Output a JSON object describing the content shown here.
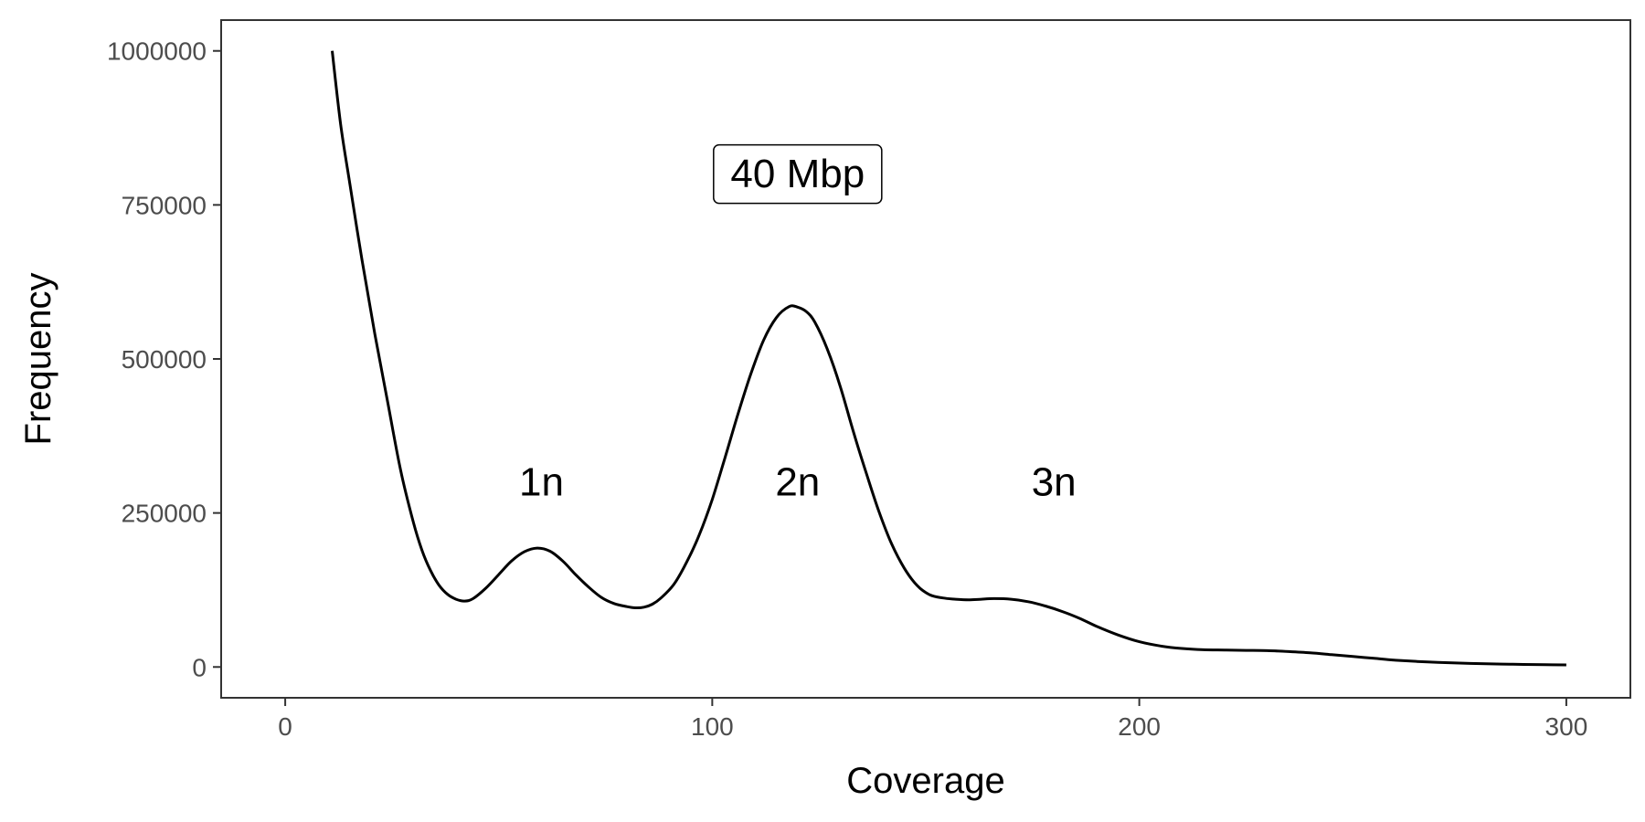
{
  "chart_data": {
    "type": "line",
    "xlabel": "Coverage",
    "ylabel": "Frequency",
    "xlim": [
      -15,
      315
    ],
    "ylim": [
      -50000,
      1050000
    ],
    "x_ticks": [
      0,
      100,
      200,
      300
    ],
    "x_tick_labels": [
      "0",
      "100",
      "200",
      "300"
    ],
    "y_ticks": [
      0,
      250000,
      500000,
      750000,
      1000000
    ],
    "y_tick_labels": [
      "0",
      "250000",
      "500000",
      "750000",
      "1000000"
    ],
    "grid": false,
    "line_color": "#000000",
    "series": [
      {
        "x": [
          11,
          13,
          15,
          18,
          21,
          24,
          27,
          30,
          32,
          34,
          36,
          38,
          40,
          42,
          44,
          47,
          50,
          53,
          56,
          59,
          62,
          65,
          68,
          71,
          74,
          77,
          80,
          82,
          84,
          86,
          88,
          91,
          94,
          97,
          100,
          103,
          106,
          109,
          112,
          115,
          118,
          120,
          122,
          124,
          127,
          130,
          133,
          136,
          139,
          142,
          145,
          148,
          151,
          154,
          157,
          160,
          163,
          166,
          170,
          174,
          178,
          182,
          186,
          190,
          195,
          200,
          205,
          210,
          215,
          220,
          225,
          230,
          235,
          240,
          245,
          250,
          255,
          260,
          265,
          270,
          275,
          280,
          285,
          290,
          295,
          300
        ],
        "y": [
          1000000,
          880000,
          790000,
          660000,
          540000,
          430000,
          320000,
          235000,
          190000,
          157000,
          133000,
          118000,
          110000,
          107000,
          111000,
          128000,
          150000,
          172000,
          187000,
          193000,
          188000,
          172000,
          150000,
          130000,
          113000,
          103000,
          98000,
          96000,
          97000,
          102000,
          112000,
          134000,
          170000,
          215000,
          272000,
          340000,
          410000,
          475000,
          530000,
          567000,
          585000,
          584000,
          577000,
          560000,
          515000,
          455000,
          383000,
          316000,
          253000,
          200000,
          160000,
          132000,
          117000,
          112000,
          110000,
          109000,
          110000,
          111000,
          110000,
          106000,
          99000,
          90000,
          79000,
          66000,
          52000,
          41000,
          34000,
          30000,
          28000,
          27500,
          27000,
          26500,
          25000,
          23000,
          20000,
          17000,
          14000,
          11000,
          9000,
          7500,
          6300,
          5400,
          4700,
          4100,
          3700,
          3300
        ]
      }
    ],
    "annotations": [
      {
        "text": "1n",
        "x": 60,
        "y": 300000
      },
      {
        "text": "2n",
        "x": 120,
        "y": 300000
      },
      {
        "text": "3n",
        "x": 180,
        "y": 300000
      }
    ],
    "boxed_annotation": {
      "text": "40 Mbp",
      "x": 120,
      "y": 800000
    }
  }
}
